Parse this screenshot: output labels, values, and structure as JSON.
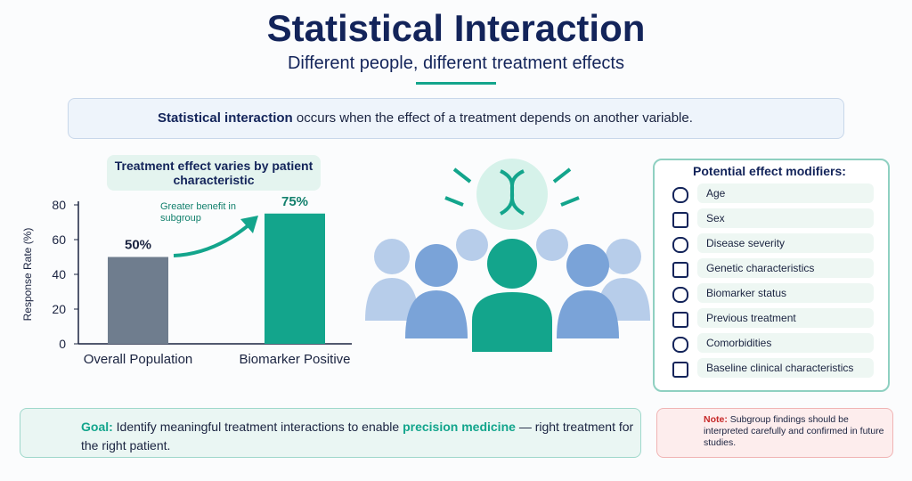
{
  "header": {
    "title": "Statistical Interaction",
    "subtitle": "Different people, different treatment effects"
  },
  "definition": {
    "term": "Statistical interaction",
    "text": "occurs when the effect of a treatment depends on another variable."
  },
  "chart_data": {
    "type": "bar",
    "title": "Treatment effect varies by patient characteristic",
    "y_label": "Response Rate (%)",
    "categories": [
      "Overall Population",
      "Biomarker Positive"
    ],
    "values": [
      50,
      75
    ],
    "value_labels": [
      "50%",
      "75%"
    ],
    "colors": [
      "#6f7d8e",
      "#13a58c"
    ],
    "annotation": "Greater benefit in subgroup",
    "ylim": [
      0,
      80
    ],
    "yticks": [
      0,
      20,
      40,
      60,
      80
    ]
  },
  "modifiers": {
    "title": "Potential effect modifiers:",
    "items": [
      "Age",
      "Sex",
      "Disease severity",
      "Genetic characteristics",
      "Biomarker status",
      "Previous treatment",
      "Comorbidities",
      "Baseline clinical characteristics"
    ]
  },
  "goal": {
    "label": "Goal:",
    "text_before": "Identify meaningful treatment interactions to enable",
    "highlight": "precision medicine",
    "text_after": "— right treatment for the right patient."
  },
  "note": {
    "label": "Note:",
    "text": "Subgroup findings should be interpreted carefully and confirmed in future studies."
  }
}
